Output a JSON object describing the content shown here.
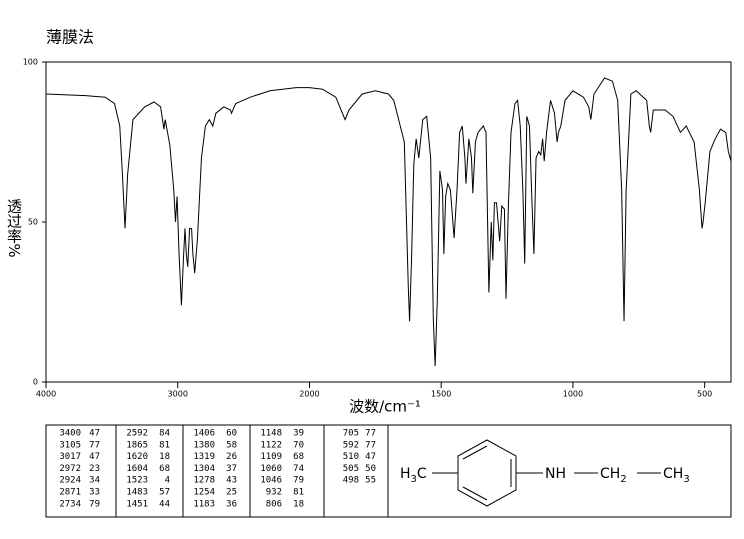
{
  "chart_data": {
    "type": "line",
    "title": "薄膜法",
    "xlabel": "波数/cm⁻¹",
    "ylabel": "透过率%",
    "x": [
      4000,
      3700,
      3550,
      3480,
      3440,
      3420,
      3400,
      3380,
      3340,
      3250,
      3180,
      3130,
      3105,
      3095,
      3060,
      3030,
      3017,
      3005,
      2990,
      2972,
      2955,
      2945,
      2935,
      2924,
      2910,
      2895,
      2885,
      2871,
      2850,
      2820,
      2790,
      2760,
      2734,
      2710,
      2650,
      2600,
      2592,
      2560,
      2450,
      2300,
      2100,
      2000,
      1950,
      1900,
      1870,
      1865,
      1850,
      1800,
      1750,
      1700,
      1680,
      1640,
      1625,
      1620,
      1612,
      1604,
      1595,
      1585,
      1570,
      1555,
      1540,
      1530,
      1523,
      1515,
      1505,
      1495,
      1490,
      1483,
      1475,
      1465,
      1451,
      1440,
      1430,
      1420,
      1410,
      1406,
      1395,
      1385,
      1380,
      1370,
      1360,
      1340,
      1330,
      1319,
      1310,
      1304,
      1298,
      1290,
      1278,
      1270,
      1260,
      1254,
      1245,
      1235,
      1220,
      1210,
      1200,
      1190,
      1183,
      1175,
      1165,
      1155,
      1148,
      1140,
      1130,
      1122,
      1115,
      1109,
      1100,
      1085,
      1070,
      1060,
      1055,
      1046,
      1030,
      1000,
      960,
      940,
      932,
      920,
      880,
      850,
      830,
      815,
      806,
      798,
      780,
      760,
      720,
      710,
      705,
      695,
      650,
      620,
      592,
      570,
      540,
      520,
      510,
      506,
      498,
      480,
      460,
      440,
      420,
      410,
      400
    ],
    "values": [
      90,
      89.5,
      89,
      87,
      80,
      65,
      48,
      65,
      82,
      86,
      87.5,
      86,
      79,
      82,
      74,
      60,
      50,
      58,
      40,
      24,
      40,
      48,
      40,
      36,
      48,
      48,
      40,
      34,
      45,
      70,
      80,
      82,
      80,
      84,
      86,
      85,
      84,
      87,
      89,
      91,
      92,
      92,
      91.5,
      89,
      83,
      82,
      85,
      90,
      91,
      90,
      88,
      75,
      30,
      19,
      40,
      68,
      76,
      70,
      82,
      83,
      70,
      20,
      5,
      25,
      66,
      60,
      40,
      58,
      62,
      60,
      45,
      60,
      78,
      80,
      70,
      62,
      76,
      70,
      59,
      75,
      78,
      80,
      78,
      28,
      50,
      38,
      56,
      56,
      44,
      55,
      54,
      26,
      55,
      78,
      87,
      88,
      80,
      60,
      37,
      83,
      80,
      55,
      40,
      70,
      72,
      71,
      76,
      69,
      78,
      88,
      84,
      75,
      78,
      80,
      88,
      91,
      89,
      86,
      82,
      90,
      95,
      94,
      88,
      60,
      19,
      60,
      90,
      91,
      88,
      80,
      78,
      85,
      85,
      83,
      78,
      80,
      75,
      60,
      48,
      50,
      56,
      72,
      76,
      79,
      78,
      72,
      69
    ],
    "color": "#000000",
    "xlim": [
      4000,
      400
    ],
    "ylim": [
      0,
      100
    ],
    "xticks": [
      4000,
      3000,
      2000,
      1500,
      1000,
      500
    ],
    "yticks": [
      0,
      50,
      100
    ],
    "x_scale_break": {
      "at": 2000,
      "factor": 2
    }
  },
  "peak_table": {
    "columns": [
      [
        [
          3400,
          47
        ],
        [
          3105,
          77
        ],
        [
          3017,
          47
        ],
        [
          2972,
          23
        ],
        [
          2924,
          34
        ],
        [
          2871,
          33
        ],
        [
          2734,
          79
        ]
      ],
      [
        [
          2592,
          84
        ],
        [
          1865,
          81
        ],
        [
          1620,
          18
        ],
        [
          1604,
          68
        ],
        [
          1523,
          4
        ],
        [
          1483,
          57
        ],
        [
          1451,
          44
        ]
      ],
      [
        [
          1406,
          60
        ],
        [
          1380,
          58
        ],
        [
          1319,
          26
        ],
        [
          1304,
          37
        ],
        [
          1278,
          43
        ],
        [
          1254,
          25
        ],
        [
          1183,
          36
        ]
      ],
      [
        [
          1148,
          39
        ],
        [
          1122,
          70
        ],
        [
          1109,
          68
        ],
        [
          1060,
          74
        ],
        [
          1046,
          79
        ],
        [
          932,
          81
        ],
        [
          806,
          18
        ]
      ],
      [
        [
          705,
          77
        ],
        [
          592,
          77
        ],
        [
          510,
          47
        ],
        [
          505,
          50
        ],
        [
          498,
          55
        ]
      ]
    ]
  },
  "structure": {
    "labels": [
      [
        "H",
        "3",
        "C"
      ],
      [
        "NH"
      ],
      [
        "CH",
        "2"
      ],
      [
        "CH",
        "3"
      ]
    ]
  }
}
